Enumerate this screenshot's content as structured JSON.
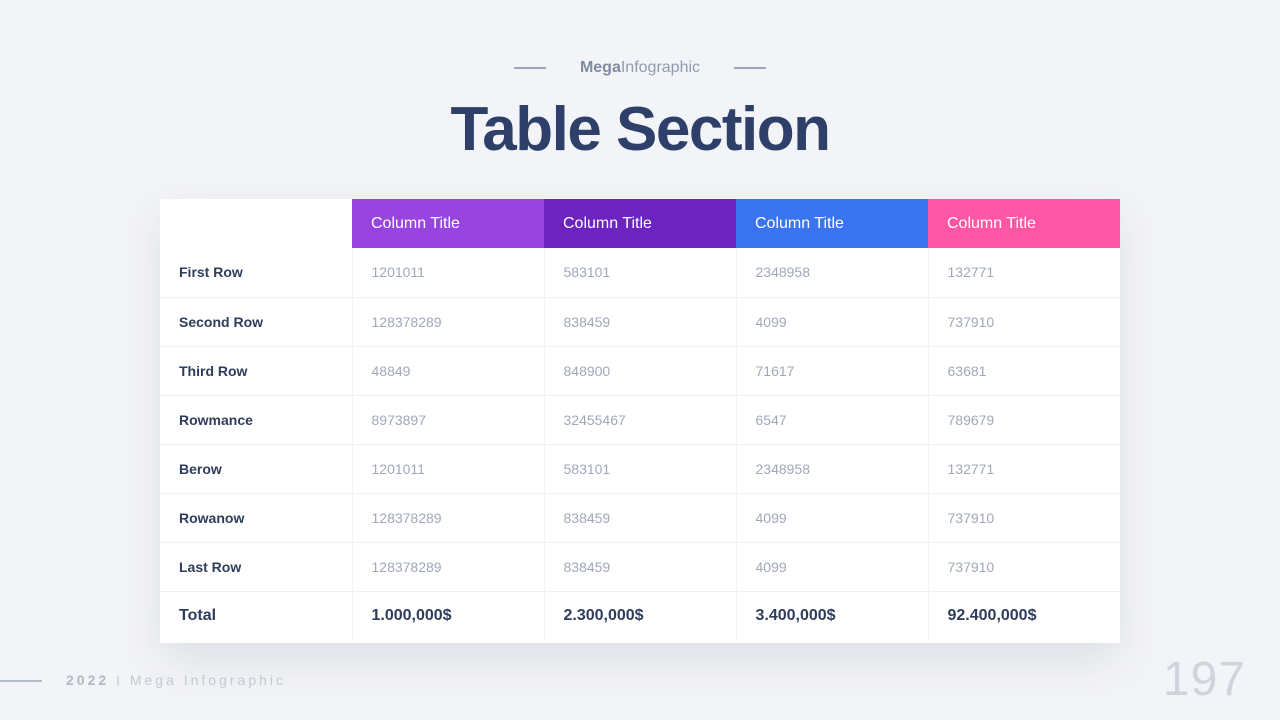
{
  "header": {
    "brand_bold": "Mega",
    "brand_light": "Infographic",
    "title": "Table Section"
  },
  "table": {
    "columns": [
      "Column Title",
      "Column Title",
      "Column Title",
      "Column Title"
    ],
    "column_colors": [
      "#9845e0",
      "#6c23c0",
      "#3b74ef",
      "#ff57a6"
    ],
    "rows": [
      {
        "label": "First Row",
        "values": [
          "1201011",
          "583101",
          "2348958",
          "132771"
        ]
      },
      {
        "label": "Second Row",
        "values": [
          "128378289",
          "838459",
          "4099",
          "737910"
        ]
      },
      {
        "label": "Third Row",
        "values": [
          "48849",
          "848900",
          "71617",
          "63681"
        ]
      },
      {
        "label": "Rowmance",
        "values": [
          "8973897",
          "32455467",
          "6547",
          "789679"
        ]
      },
      {
        "label": "Berow",
        "values": [
          "1201011",
          "583101",
          "2348958",
          "132771"
        ]
      },
      {
        "label": "Rowanow",
        "values": [
          "128378289",
          "838459",
          "4099",
          "737910"
        ]
      },
      {
        "label": "Last Row",
        "values": [
          "128378289",
          "838459",
          "4099",
          "737910"
        ]
      }
    ],
    "total": {
      "label": "Total",
      "values": [
        "1.000,000$",
        "2.300,000$",
        "3.400,000$",
        "92.400,000$"
      ]
    }
  },
  "footer": {
    "year": "2022",
    "separator": "I",
    "brand": "Mega Infographic",
    "page_number": "197"
  }
}
